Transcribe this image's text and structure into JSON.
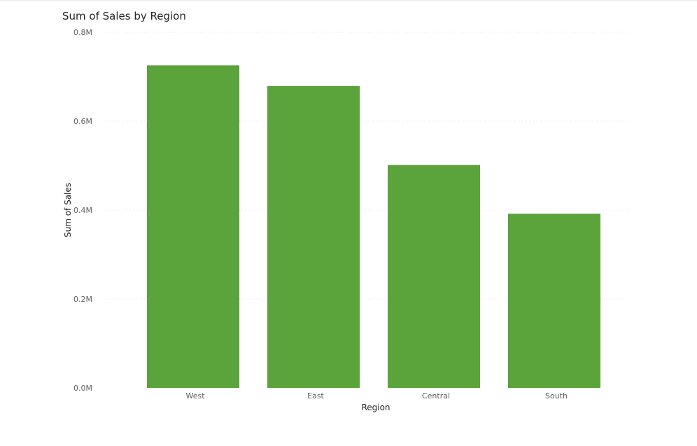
{
  "colors": {
    "bar": "#5ba33b",
    "grid": "#e6e6e6"
  },
  "chart_data": {
    "type": "bar",
    "title": "Sum of Sales by Region",
    "xlabel": "Region",
    "ylabel": "Sum of Sales",
    "categories": [
      "West",
      "East",
      "Central",
      "South"
    ],
    "values": [
      725458,
      678781,
      501240,
      391722
    ],
    "ylim": [
      0,
      800000
    ],
    "yticks": [
      0,
      200000,
      400000,
      600000,
      800000
    ],
    "ytick_labels": [
      "0.0M",
      "0.2M",
      "0.4M",
      "0.6M",
      "0.8M"
    ]
  }
}
